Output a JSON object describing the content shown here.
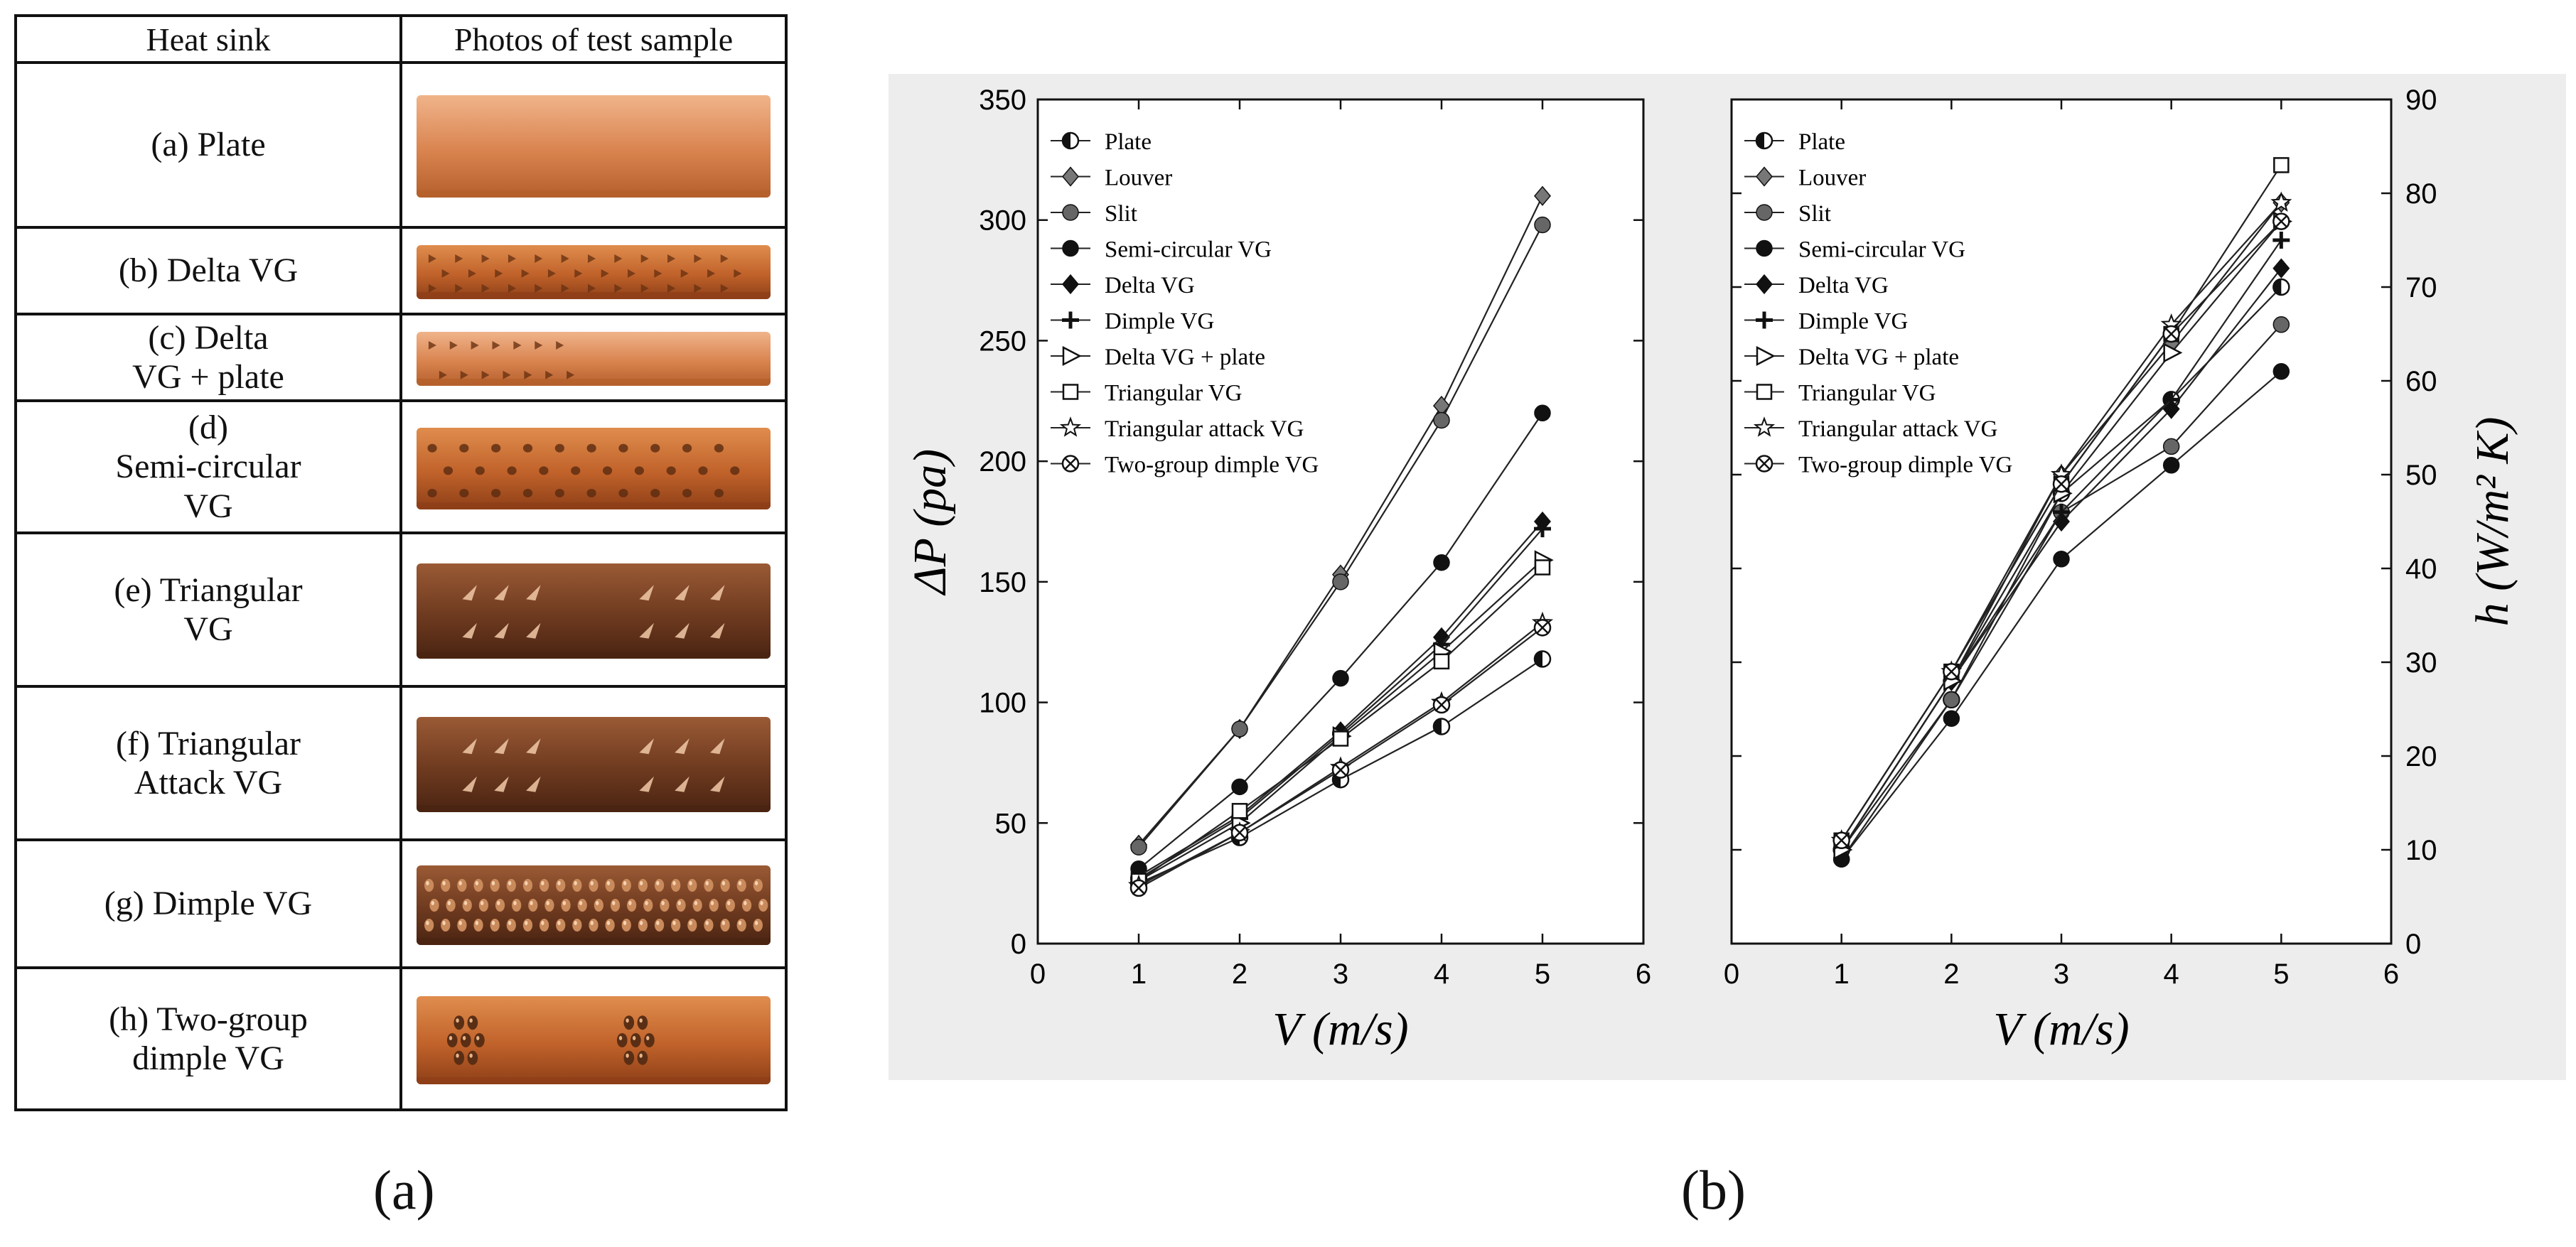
{
  "table": {
    "headers": [
      "Heat sink",
      "Photos of test sample"
    ],
    "rows": [
      {
        "letter": "(a)",
        "name": "Plate",
        "label_lines": [
          "(a) Plate"
        ],
        "pattern": "none",
        "tone": "light",
        "marks": 0
      },
      {
        "letter": "(b)",
        "name": "Delta VG",
        "label_lines": [
          "(b) Delta VG"
        ],
        "pattern": "delta",
        "tone": "mid",
        "marks": 36
      },
      {
        "letter": "(c)",
        "name": "Delta VG + plate",
        "label_lines": [
          "(c) Delta",
          "VG + plate"
        ],
        "pattern": "delta-half",
        "tone": "light",
        "marks": 14
      },
      {
        "letter": "(d)",
        "name": "Semi-circular VG",
        "label_lines": [
          "(d)",
          "Semi-circular",
          "VG"
        ],
        "pattern": "semi",
        "tone": "mid",
        "marks": 30
      },
      {
        "letter": "(e)",
        "name": "Triangular VG",
        "label_lines": [
          "(e) Triangular",
          "VG"
        ],
        "pattern": "tri",
        "tone": "dark",
        "marks": 12
      },
      {
        "letter": "(f)",
        "name": "Triangular Attack VG",
        "label_lines": [
          "(f) Triangular",
          "Attack VG"
        ],
        "pattern": "tri",
        "tone": "dark",
        "marks": 12
      },
      {
        "letter": "(g)",
        "name": "Dimple VG",
        "label_lines": [
          "(g) Dimple VG"
        ],
        "pattern": "dimple",
        "tone": "dark",
        "marks": 63
      },
      {
        "letter": "(h)",
        "name": "Two-group dimple VG",
        "label_lines": [
          "(h) Two-group",
          "dimple VG"
        ],
        "pattern": "two-group",
        "tone": "mid",
        "marks": 14
      }
    ]
  },
  "captions": {
    "left": "(a)",
    "right": "(b)"
  },
  "chart_data": [
    {
      "type": "line",
      "xlabel": "V (m/s)",
      "ylabel": "ΔP (pa)",
      "xlim": [
        0,
        6
      ],
      "ylim": [
        0,
        350
      ],
      "xticks": [
        0,
        1,
        2,
        3,
        4,
        5,
        6
      ],
      "yticks": [
        0,
        50,
        100,
        150,
        200,
        250,
        300,
        350
      ],
      "legend_position": "top-left",
      "x": [
        1,
        2,
        3,
        4,
        5
      ],
      "series": [
        {
          "name": "Plate",
          "marker": "half-circle",
          "values": [
            25,
            44,
            68,
            90,
            118
          ]
        },
        {
          "name": "Louver",
          "marker": "diamond-gray",
          "values": [
            41,
            89,
            153,
            223,
            310
          ]
        },
        {
          "name": "Slit",
          "marker": "circle-gray",
          "values": [
            40,
            89,
            150,
            217,
            298
          ]
        },
        {
          "name": "Semi-circular VG",
          "marker": "circle-black",
          "values": [
            31,
            65,
            110,
            158,
            220
          ]
        },
        {
          "name": "Delta VG",
          "marker": "diamond-black",
          "values": [
            28,
            53,
            88,
            127,
            175
          ]
        },
        {
          "name": "Dimple VG",
          "marker": "plus",
          "values": [
            27,
            52,
            87,
            124,
            172
          ]
        },
        {
          "name": "Delta VG + plate",
          "marker": "triangle-open",
          "values": [
            26,
            50,
            86,
            121,
            159
          ]
        },
        {
          "name": "Triangular VG",
          "marker": "square-open",
          "values": [
            26,
            55,
            85,
            117,
            156
          ]
        },
        {
          "name": "Triangular attack VG",
          "marker": "star-open",
          "values": [
            24,
            46,
            73,
            100,
            133
          ]
        },
        {
          "name": "Two-group dimple VG",
          "marker": "circle-x",
          "values": [
            23,
            46,
            72,
            99,
            131
          ]
        }
      ]
    },
    {
      "type": "line",
      "xlabel": "V (m/s)",
      "ylabel": "h (W/m² K)",
      "xlim": [
        0,
        6
      ],
      "ylim": [
        0,
        90
      ],
      "xticks": [
        0,
        1,
        2,
        3,
        4,
        5,
        6
      ],
      "yticks": [
        0,
        10,
        20,
        30,
        40,
        50,
        60,
        70,
        80,
        90
      ],
      "y_axis_side": "right",
      "legend_position": "top-left",
      "x": [
        1,
        2,
        3,
        4,
        5
      ],
      "series": [
        {
          "name": "Plate",
          "marker": "half-circle",
          "values": [
            10,
            26,
            48,
            58,
            70
          ]
        },
        {
          "name": "Louver",
          "marker": "diamond-gray",
          "values": [
            10,
            28,
            50,
            64,
            79
          ]
        },
        {
          "name": "Slit",
          "marker": "circle-gray",
          "values": [
            9,
            26,
            46,
            53,
            66
          ]
        },
        {
          "name": "Semi-circular VG",
          "marker": "circle-black",
          "values": [
            9,
            24,
            41,
            51,
            61
          ]
        },
        {
          "name": "Delta VG",
          "marker": "diamond-black",
          "values": [
            10,
            28,
            45,
            57,
            72
          ]
        },
        {
          "name": "Dimple VG",
          "marker": "plus",
          "values": [
            10,
            28,
            46,
            58,
            75
          ]
        },
        {
          "name": "Delta VG + plate",
          "marker": "triangle-open",
          "values": [
            10,
            28,
            48,
            63,
            77
          ]
        },
        {
          "name": "Triangular VG",
          "marker": "square-open",
          "values": [
            11,
            29,
            49,
            65,
            83
          ]
        },
        {
          "name": "Triangular attack VG",
          "marker": "star-open",
          "values": [
            11,
            29,
            50,
            66,
            79
          ]
        },
        {
          "name": "Two-group dimple VG",
          "marker": "circle-x",
          "values": [
            11,
            29,
            49,
            65,
            77
          ]
        }
      ]
    }
  ]
}
